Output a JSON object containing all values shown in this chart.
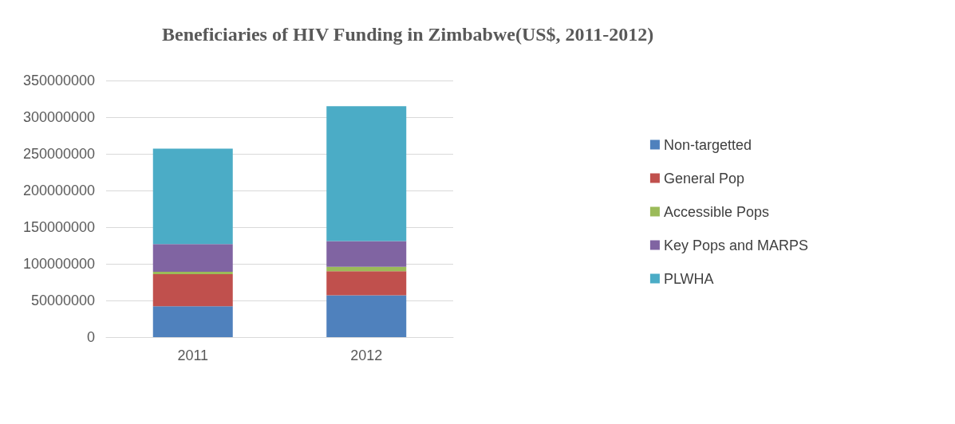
{
  "chart_data": {
    "type": "bar",
    "title": "Beneficiaries of HIV Funding in Zimbabwe(US$, 2011-2012)",
    "categories": [
      "2011",
      "2012"
    ],
    "stacked": true,
    "series": [
      {
        "name": "Non-targetted",
        "color": "#4f81bd",
        "values": [
          42000000,
          57000000
        ]
      },
      {
        "name": "General Pop",
        "color": "#c0504d",
        "values": [
          44000000,
          33000000
        ]
      },
      {
        "name": "Accessible Pops",
        "color": "#9bbb59",
        "values": [
          3000000,
          6000000
        ]
      },
      {
        "name": "Key Pops and MARPS",
        "color": "#8064a2",
        "values": [
          38000000,
          35000000
        ]
      },
      {
        "name": "PLWHA",
        "color": "#4bacc6",
        "values": [
          130000000,
          184000000
        ]
      }
    ],
    "ylim": [
      0,
      350000000
    ],
    "yticks": [
      0,
      50000000,
      100000000,
      150000000,
      200000000,
      250000000,
      300000000,
      350000000
    ],
    "grid": "y",
    "legend": "right"
  }
}
